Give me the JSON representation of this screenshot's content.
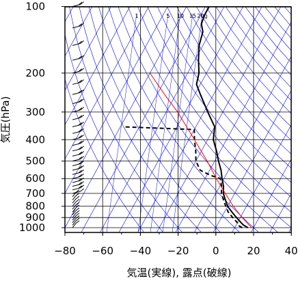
{
  "chart_data": {
    "type": "line",
    "title": "",
    "xlabel": "気温(実線), 露点(破線)",
    "ylabel": "気圧(hPa)",
    "xlim": [
      -80,
      40
    ],
    "ylim": [
      1050,
      100
    ],
    "y_scale": "log",
    "grid": true,
    "x_ticks": [
      -80,
      -60,
      -40,
      -20,
      0,
      20,
      40
    ],
    "x_tick_labels": [
      "−80",
      "−60",
      "−40",
      "−20",
      "0",
      "20",
      "40"
    ],
    "y_ticks": [
      100,
      200,
      300,
      400,
      500,
      600,
      700,
      800,
      900,
      1000
    ],
    "y_tick_labels": [
      "100",
      "200",
      "300",
      "400",
      "500",
      "600",
      "700",
      "800",
      "900",
      "1000"
    ],
    "mixing_ratio_labels": [
      "1",
      "5",
      "10",
      "15",
      "20g"
    ],
    "series": [
      {
        "name": "",
        "style": "solid",
        "color": "#000000",
        "points": [
          [
            1000,
            17
          ],
          [
            975,
            14
          ],
          [
            950,
            12
          ],
          [
            925,
            10
          ],
          [
            900,
            8
          ],
          [
            850,
            4
          ],
          [
            800,
            0
          ],
          [
            750,
            -3
          ],
          [
            700,
            -6
          ],
          [
            650,
            -8
          ],
          [
            600,
            -11
          ],
          [
            550,
            -14
          ],
          [
            500,
            -18
          ],
          [
            450,
            -22
          ],
          [
            400,
            -27
          ],
          [
            350,
            -30
          ],
          [
            300,
            -38
          ],
          [
            250,
            -47
          ],
          [
            225,
            -52
          ],
          [
            200,
            -54
          ],
          [
            175,
            -58
          ],
          [
            150,
            -62
          ],
          [
            130,
            -64
          ],
          [
            120,
            -67
          ],
          [
            110,
            -68
          ],
          [
            100,
            -68
          ]
        ]
      },
      {
        "name": "",
        "style": "dashed",
        "color": "#000000",
        "points": [
          [
            1000,
            14
          ],
          [
            975,
            11
          ],
          [
            950,
            10
          ],
          [
            925,
            8
          ],
          [
            900,
            6
          ],
          [
            850,
            2
          ],
          [
            800,
            -1
          ],
          [
            750,
            -4
          ],
          [
            700,
            -7
          ],
          [
            650,
            -9
          ],
          [
            600,
            -12
          ],
          [
            580,
            -18
          ],
          [
            550,
            -25
          ],
          [
            500,
            -30
          ],
          [
            450,
            -33
          ],
          [
            400,
            -37
          ],
          [
            360,
            -40
          ],
          [
            350,
            -78
          ]
        ]
      },
      {
        "name": "",
        "style": "solid",
        "color": "#ff0000",
        "points": [
          [
            1000,
            19
          ],
          [
            900,
            11
          ],
          [
            800,
            3
          ],
          [
            700,
            -5
          ],
          [
            600,
            -14
          ],
          [
            500,
            -24
          ],
          [
            400,
            -37
          ],
          [
            300,
            -54
          ],
          [
            250,
            -66
          ],
          [
            200,
            -80
          ]
        ]
      }
    ],
    "wind_barbs_x": -76,
    "colors": {
      "grid": "#000000",
      "isotherm_lines": "#0000ff",
      "temperature": "#000000",
      "dewpoint": "#000000",
      "parcel": "#ff0000"
    }
  }
}
